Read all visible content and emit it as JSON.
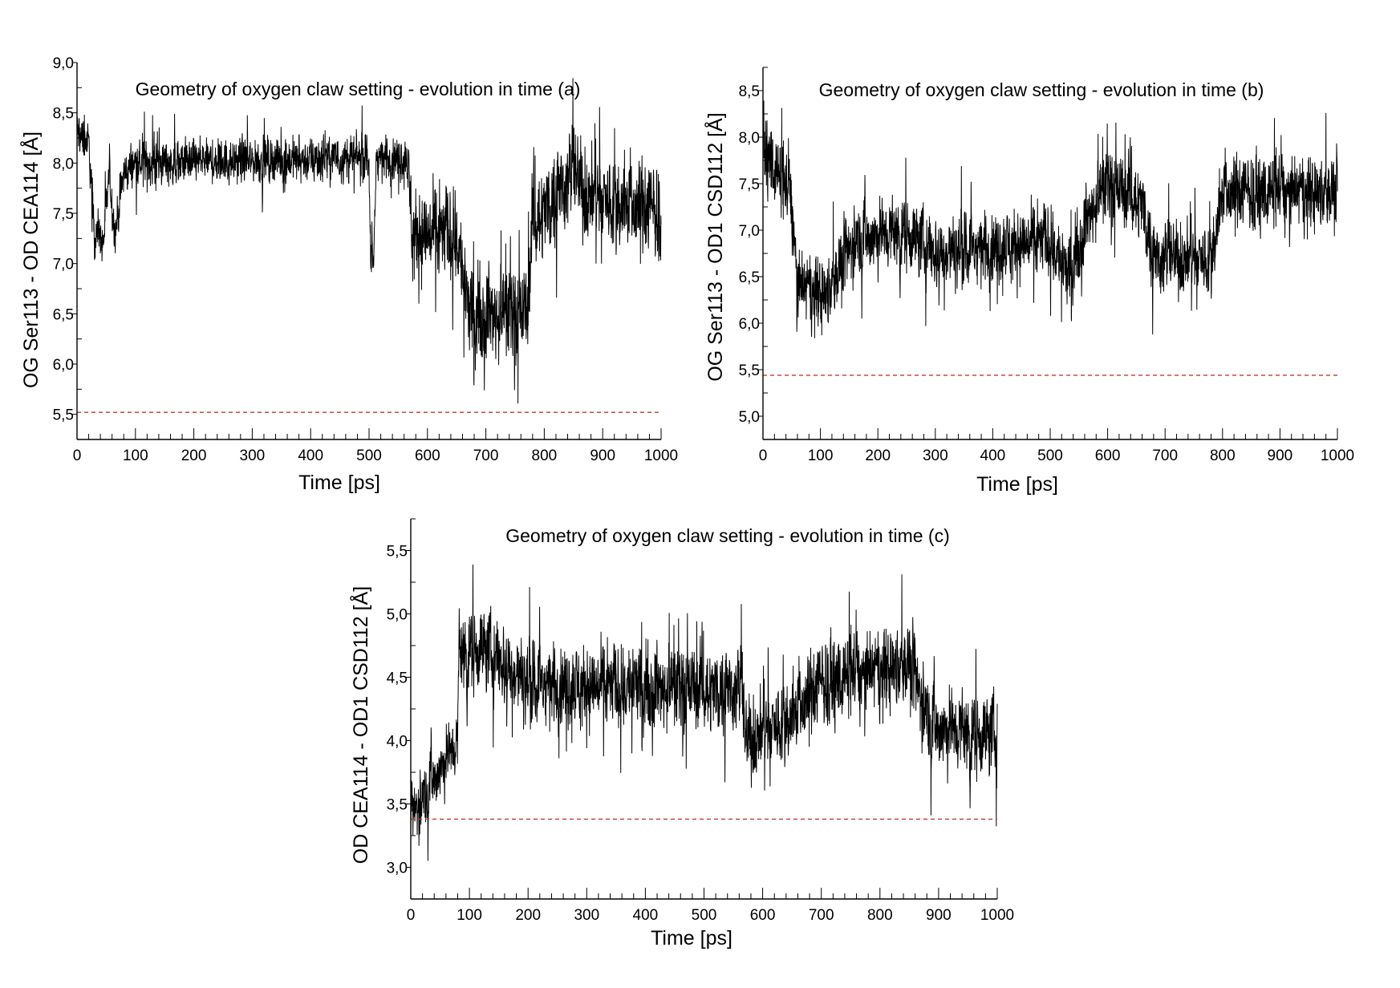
{
  "colors": {
    "series": "#000000",
    "threshold": "#c0392b",
    "axis": "#000000"
  },
  "chart_data": [
    {
      "id": "a",
      "type": "line",
      "title": "Geometry of oxygen claw setting - evolution in time (a)",
      "xlabel": "Time [ps]",
      "ylabel": "OG Ser113 - OD CEA114 [Å]",
      "xlim": [
        0,
        1000
      ],
      "ylim": [
        5.25,
        9.0
      ],
      "xticks": [
        "0",
        "100",
        "200",
        "300",
        "400",
        "500",
        "600",
        "700",
        "800",
        "900",
        "1000"
      ],
      "yticks": [
        "5,5",
        "6,0",
        "6,5",
        "7,0",
        "7,5",
        "8,0",
        "8,5",
        "9,0"
      ],
      "threshold": 5.52,
      "mean_profile": {
        "x": [
          0,
          20,
          30,
          45,
          55,
          65,
          80,
          100,
          500,
          503,
          508,
          512,
          565,
          575,
          650,
          670,
          770,
          780,
          850,
          870,
          1000
        ],
        "y": [
          8.3,
          8.2,
          7.3,
          7.2,
          7.9,
          7.3,
          7.9,
          8.0,
          8.05,
          7.0,
          7.0,
          8.05,
          8.05,
          7.3,
          7.3,
          6.5,
          6.5,
          7.4,
          7.9,
          7.7,
          7.5
        ]
      },
      "noise": {
        "x": [
          0,
          565,
          570,
          1000
        ],
        "amp": [
          0.22,
          0.22,
          0.45,
          0.45
        ]
      }
    },
    {
      "id": "b",
      "type": "line",
      "title": "Geometry of oxygen claw setting - evolution in time (b)",
      "xlabel": "Time [ps]",
      "ylabel": "OG Ser113 - OD1 CSD112 [Å]",
      "xlim": [
        0,
        1000
      ],
      "ylim": [
        4.75,
        8.75
      ],
      "xticks": [
        "0",
        "100",
        "200",
        "300",
        "400",
        "500",
        "600",
        "700",
        "800",
        "900",
        "1000"
      ],
      "yticks": [
        "5,0",
        "5,5",
        "6,0",
        "6,5",
        "7,0",
        "7,5",
        "8,0",
        "8,5"
      ],
      "threshold": 5.44,
      "mean_profile": {
        "x": [
          0,
          50,
          60,
          110,
          160,
          250,
          300,
          500,
          530,
          570,
          600,
          660,
          680,
          780,
          800,
          1000
        ],
        "y": [
          7.9,
          7.3,
          6.4,
          6.3,
          6.9,
          7.0,
          6.75,
          6.9,
          6.5,
          7.2,
          7.5,
          7.3,
          6.7,
          6.7,
          7.4,
          7.4
        ]
      },
      "noise": {
        "x": [
          0,
          1000
        ],
        "amp": [
          0.38,
          0.38
        ]
      }
    },
    {
      "id": "c",
      "type": "line",
      "title": "Geometry of oxygen claw setting - evolution in time (c)",
      "xlabel": "Time [ps]",
      "ylabel": "OD CEA114 - OD1 CSD112 [Å]",
      "xlim": [
        0,
        1000
      ],
      "ylim": [
        2.75,
        5.75
      ],
      "xticks": [
        "0",
        "100",
        "200",
        "300",
        "400",
        "500",
        "600",
        "700",
        "800",
        "900",
        "1000"
      ],
      "yticks": [
        "3,0",
        "3,5",
        "4,0",
        "4,5",
        "5,0",
        "5,5"
      ],
      "threshold": 3.38,
      "mean_profile": {
        "x": [
          0,
          80,
          82,
          120,
          200,
          565,
          570,
          650,
          700,
          850,
          890,
          1000
        ],
        "y": [
          3.4,
          4.0,
          4.7,
          4.75,
          4.45,
          4.4,
          4.0,
          4.2,
          4.45,
          4.6,
          4.1,
          4.05
        ]
      },
      "noise": {
        "x": [
          0,
          80,
          82,
          1000
        ],
        "amp": [
          0.25,
          0.25,
          0.32,
          0.32
        ]
      }
    }
  ]
}
